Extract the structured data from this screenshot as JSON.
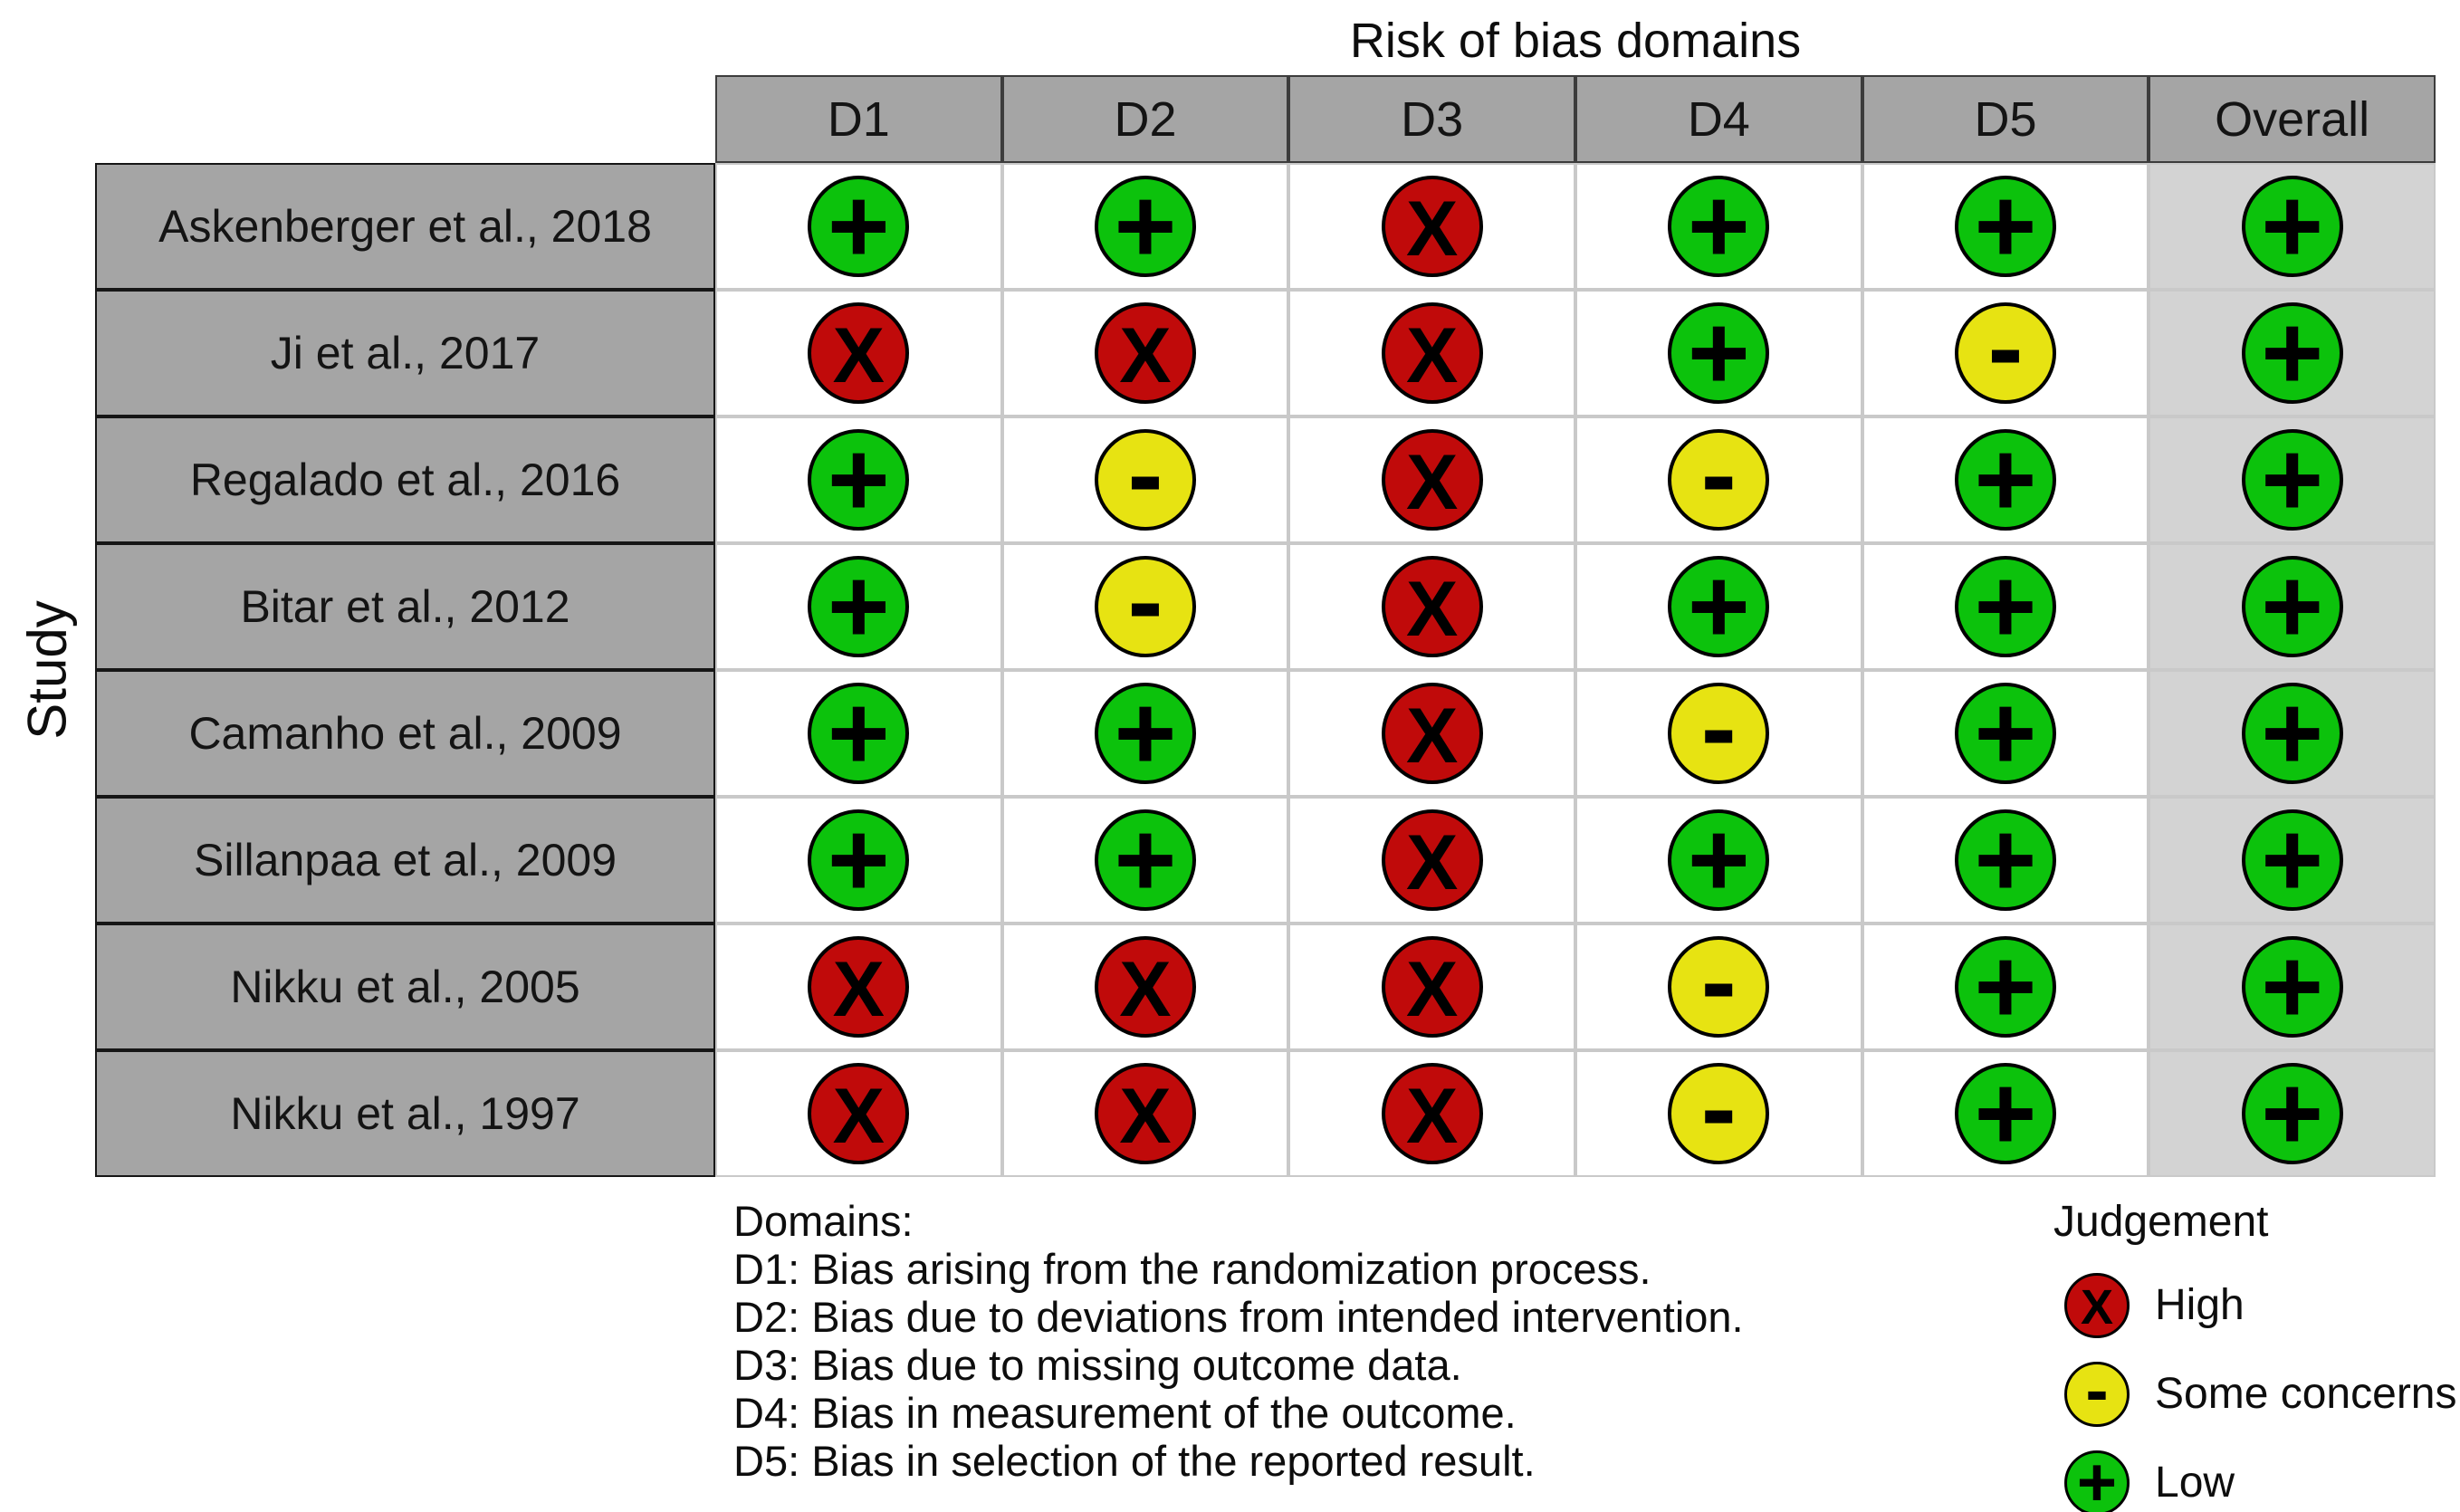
{
  "title": "Risk of bias domains",
  "axis_label": "Study",
  "chart_data": {
    "type": "table",
    "title": "Risk of bias domains",
    "columns": [
      "D1",
      "D2",
      "D3",
      "D4",
      "D5",
      "Overall"
    ],
    "studies": [
      "Askenberger et al., 2018",
      "Ji et al., 2017",
      "Regalado et al., 2016",
      "Bitar et al., 2012",
      "Camanho et al., 2009",
      "Sillanpaa et al., 2009",
      "Nikku et al., 2005",
      "Nikku et al., 1997"
    ],
    "judgements": [
      [
        "low",
        "low",
        "high",
        "low",
        "low",
        "low"
      ],
      [
        "high",
        "high",
        "high",
        "low",
        "some",
        "low"
      ],
      [
        "low",
        "some",
        "high",
        "some",
        "low",
        "low"
      ],
      [
        "low",
        "some",
        "high",
        "low",
        "low",
        "low"
      ],
      [
        "low",
        "low",
        "high",
        "some",
        "low",
        "low"
      ],
      [
        "low",
        "low",
        "high",
        "low",
        "low",
        "low"
      ],
      [
        "high",
        "high",
        "high",
        "some",
        "low",
        "low"
      ],
      [
        "high",
        "high",
        "high",
        "some",
        "low",
        "low"
      ]
    ]
  },
  "symbols": {
    "low": "+",
    "some": "-",
    "high": "X"
  },
  "colors": {
    "low": "#0cc20c",
    "some": "#e7e312",
    "high": "#c00a0a",
    "header_bg": "#a5a5a5",
    "study_bg": "#a5a5a5",
    "overall_col_bg": "#d3d3d3"
  },
  "domains_note": {
    "heading": "Domains:",
    "items": [
      "D1: Bias arising from the randomization process.",
      "D2: Bias due to deviations from intended intervention.",
      "D3: Bias due to missing outcome data.",
      "D4: Bias in measurement of the outcome.",
      "D5: Bias in selection of the reported result."
    ]
  },
  "legend": {
    "title": "Judgement",
    "items": [
      {
        "judgement": "high",
        "label": "High"
      },
      {
        "judgement": "some",
        "label": "Some concerns"
      },
      {
        "judgement": "low",
        "label": "Low"
      }
    ]
  }
}
